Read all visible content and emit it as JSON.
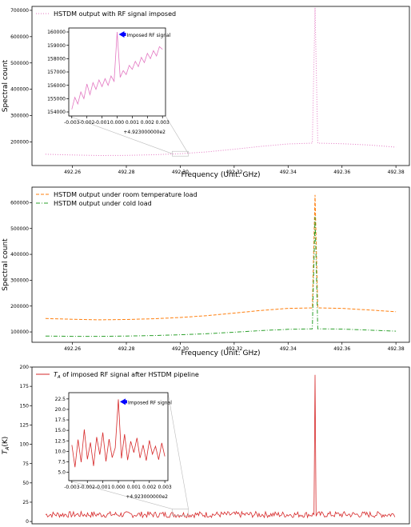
{
  "chart_data": [
    {
      "type": "line",
      "legend_location": "upper-left",
      "xlabel": "Frequency (Unit: GHz)",
      "ylabel": "Spectral count",
      "xlim": [
        492.245,
        492.385
      ],
      "ylim": [
        110000,
        715000
      ],
      "xticks": [
        492.26,
        492.28,
        492.3,
        492.32,
        492.34,
        492.36,
        492.38
      ],
      "xtick_labels": [
        "492.26",
        "492.28",
        "492.30",
        "492.32",
        "492.34",
        "492.36",
        "492.38"
      ],
      "yticks": [
        200000,
        300000,
        400000,
        500000,
        600000,
        700000
      ],
      "ytick_labels": [
        "200000",
        "300000",
        "400000",
        "500000",
        "600000",
        "700000"
      ],
      "series": [
        {
          "name": "HSTDM output with RF signal imposed",
          "color": "#e377c2",
          "style": "dotted",
          "x": [
            492.25,
            492.26,
            492.27,
            492.28,
            492.29,
            492.3,
            492.31,
            492.32,
            492.33,
            492.34,
            492.349,
            492.35,
            492.351,
            492.36,
            492.37,
            492.38
          ],
          "y": [
            153000,
            150000,
            148000,
            148500,
            151000,
            155000,
            162000,
            172000,
            183000,
            192000,
            195000,
            710000,
            195000,
            193000,
            188000,
            180000
          ]
        }
      ],
      "inset": {
        "xlim": [
          -0.0032,
          0.0032
        ],
        "ylim": [
          153700,
          160300
        ],
        "xticks": [
          -0.003,
          -0.002,
          -0.001,
          0.0,
          0.001,
          0.002,
          0.003
        ],
        "xtick_labels": [
          "-0.003",
          "-0.002",
          "-0.001",
          "0.000",
          "0.001",
          "0.002",
          "0.003"
        ],
        "offset_label": "+4.923000000e2",
        "yticks": [
          154000,
          155000,
          156000,
          157000,
          158000,
          159000,
          160000
        ],
        "ytick_labels": [
          "154000",
          "155000",
          "156000",
          "157000",
          "158000",
          "159000",
          "160000"
        ],
        "annotation": "Imposed RF signal",
        "x": [
          -0.003,
          -0.0028,
          -0.0026,
          -0.0024,
          -0.0022,
          -0.002,
          -0.0018,
          -0.0016,
          -0.0014,
          -0.0012,
          -0.001,
          -0.0008,
          -0.0006,
          -0.0004,
          -0.0002,
          0.0,
          0.0002,
          0.0004,
          0.0006,
          0.0008,
          0.001,
          0.0012,
          0.0014,
          0.0016,
          0.0018,
          0.002,
          0.0022,
          0.0024,
          0.0026,
          0.0028,
          0.003
        ],
        "y": [
          154200,
          155100,
          154600,
          155500,
          155000,
          156100,
          155300,
          156200,
          155700,
          156400,
          155900,
          156500,
          156000,
          156700,
          156300,
          160000,
          156600,
          157100,
          156800,
          157500,
          157200,
          157800,
          157400,
          158100,
          157700,
          158400,
          158000,
          158600,
          158200,
          158900,
          158700
        ]
      }
    },
    {
      "type": "line",
      "legend_location": "upper-left",
      "xlabel": "Frequency (Unit: GHz)",
      "ylabel": "Spectral count",
      "xlim": [
        492.245,
        492.385
      ],
      "ylim": [
        60000,
        660000
      ],
      "xticks": [
        492.26,
        492.28,
        492.3,
        492.32,
        492.34,
        492.36,
        492.38
      ],
      "xtick_labels": [
        "492.26",
        "492.28",
        "492.30",
        "492.32",
        "492.34",
        "492.36",
        "492.38"
      ],
      "yticks": [
        100000,
        200000,
        300000,
        400000,
        500000,
        600000
      ],
      "ytick_labels": [
        "100000",
        "200000",
        "300000",
        "400000",
        "500000",
        "600000"
      ],
      "series": [
        {
          "name": "HSTDM output under room temperature load",
          "color": "#ff7f0e",
          "style": "dashed",
          "x": [
            492.25,
            492.26,
            492.27,
            492.28,
            492.29,
            492.3,
            492.31,
            492.32,
            492.33,
            492.34,
            492.349,
            492.35,
            492.351,
            492.36,
            492.37,
            492.38
          ],
          "y": [
            152000,
            149000,
            147000,
            148000,
            151000,
            156000,
            163000,
            173000,
            183000,
            191000,
            193000,
            630000,
            193000,
            191000,
            185000,
            178000
          ]
        },
        {
          "name": "HSTDM output under cold load",
          "color": "#2ca02c",
          "style": "dashdot",
          "x": [
            492.25,
            492.26,
            492.27,
            492.28,
            492.29,
            492.3,
            492.31,
            492.32,
            492.33,
            492.34,
            492.349,
            492.35,
            492.351,
            492.36,
            492.37,
            492.38
          ],
          "y": [
            84000,
            83000,
            83000,
            84000,
            86000,
            89000,
            93000,
            99000,
            105000,
            110000,
            112000,
            545000,
            112000,
            111000,
            107000,
            103000
          ]
        }
      ]
    },
    {
      "type": "line",
      "legend_location": "upper-left",
      "xlabel": "",
      "ylabel": "T_A(K)",
      "xlim": [
        492.245,
        492.385
      ],
      "ylim": [
        -3,
        200
      ],
      "xticks": [],
      "xtick_labels": [],
      "yticks": [
        0,
        25,
        50,
        75,
        100,
        125,
        150,
        175,
        200
      ],
      "ytick_labels": [
        "0",
        "25",
        "50",
        "75",
        "100",
        "125",
        "150",
        "175",
        "200"
      ],
      "series": [
        {
          "name": "T_A(K) of imposed RF signal after HSTDM pipeline",
          "color": "#d62728",
          "style": "solid",
          "noise_center": 9,
          "noise_amplitude": 4,
          "x": [
            492.35
          ],
          "y": [
            190
          ]
        }
      ],
      "inset": {
        "xlim": [
          -0.0032,
          0.0032
        ],
        "ylim": [
          3.0,
          24.0
        ],
        "xticks": [
          -0.003,
          -0.002,
          -0.001,
          0.0,
          0.001,
          0.002,
          0.003
        ],
        "xtick_labels": [
          "-0.003",
          "-0.002",
          "-0.001",
          "0.000",
          "0.001",
          "0.002",
          "0.003"
        ],
        "offset_label": "+4.923000000e2",
        "yticks": [
          5.0,
          7.5,
          10.0,
          12.5,
          15.0,
          17.5,
          20.0,
          22.5
        ],
        "ytick_labels": [
          "5.0",
          "7.5",
          "10.0",
          "12.5",
          "15.0",
          "17.5",
          "20.0",
          "22.5"
        ],
        "annotation": "Imposed RF signal",
        "x": [
          -0.003,
          -0.0028,
          -0.0026,
          -0.0024,
          -0.0022,
          -0.002,
          -0.0018,
          -0.0016,
          -0.0014,
          -0.0012,
          -0.001,
          -0.0008,
          -0.0006,
          -0.0004,
          -0.0002,
          0.0,
          0.0002,
          0.0004,
          0.0006,
          0.0008,
          0.001,
          0.0012,
          0.0014,
          0.0016,
          0.0018,
          0.002,
          0.0022,
          0.0024,
          0.0026,
          0.0028,
          0.003
        ],
        "y": [
          11.5,
          6.2,
          12.8,
          7.4,
          15.2,
          8.1,
          12.1,
          6.5,
          13.4,
          9.2,
          14.5,
          7.6,
          12.9,
          8.5,
          10.8,
          22.4,
          8.3,
          14.1,
          7.9,
          12.4,
          9.7,
          13.2,
          8.4,
          11.5,
          7.8,
          12.6,
          9.3,
          11.2,
          8.0,
          12.0,
          8.8
        ]
      }
    }
  ]
}
